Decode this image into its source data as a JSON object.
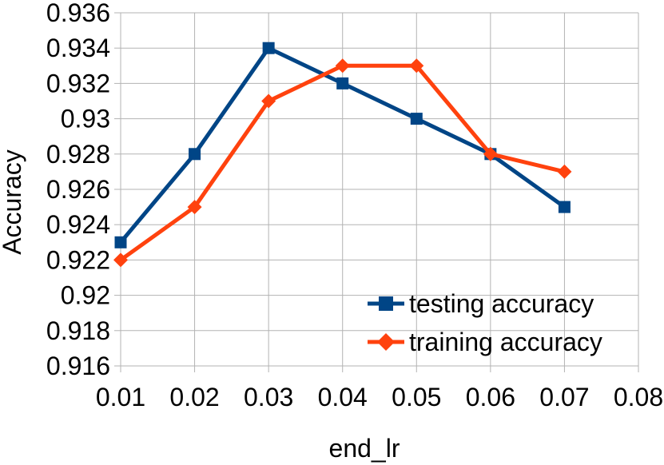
{
  "chart_data": {
    "type": "line",
    "title": "",
    "xlabel": "end_lr",
    "ylabel": "Accuracy",
    "xlim": [
      0.01,
      0.08
    ],
    "ylim": [
      0.916,
      0.936
    ],
    "x_ticks": [
      0.01,
      0.02,
      0.03,
      0.04,
      0.05,
      0.06,
      0.07,
      0.08
    ],
    "x_tick_labels": [
      "0.01",
      "0.02",
      "0.03",
      "0.04",
      "0.05",
      "0.06",
      "0.07",
      "0.08"
    ],
    "y_ticks": [
      0.916,
      0.918,
      0.92,
      0.922,
      0.924,
      0.926,
      0.928,
      0.93,
      0.932,
      0.934,
      0.936
    ],
    "y_tick_labels": [
      "0.916",
      "0.918",
      "0.92",
      "0.922",
      "0.924",
      "0.926",
      "0.928",
      "0.93",
      "0.932",
      "0.934",
      "0.936"
    ],
    "grid": true,
    "legend_position": "bottom-right",
    "series": [
      {
        "name": "testing accuracy",
        "color": "#004586",
        "marker": "square",
        "x": [
          0.01,
          0.02,
          0.03,
          0.04,
          0.05,
          0.06,
          0.07
        ],
        "values": [
          0.923,
          0.928,
          0.934,
          0.932,
          0.93,
          0.928,
          0.925
        ]
      },
      {
        "name": "training accuracy",
        "color": "#ff420e",
        "marker": "diamond",
        "x": [
          0.01,
          0.02,
          0.03,
          0.04,
          0.05,
          0.06,
          0.07
        ],
        "values": [
          0.922,
          0.925,
          0.931,
          0.933,
          0.933,
          0.928,
          0.927
        ]
      }
    ]
  }
}
